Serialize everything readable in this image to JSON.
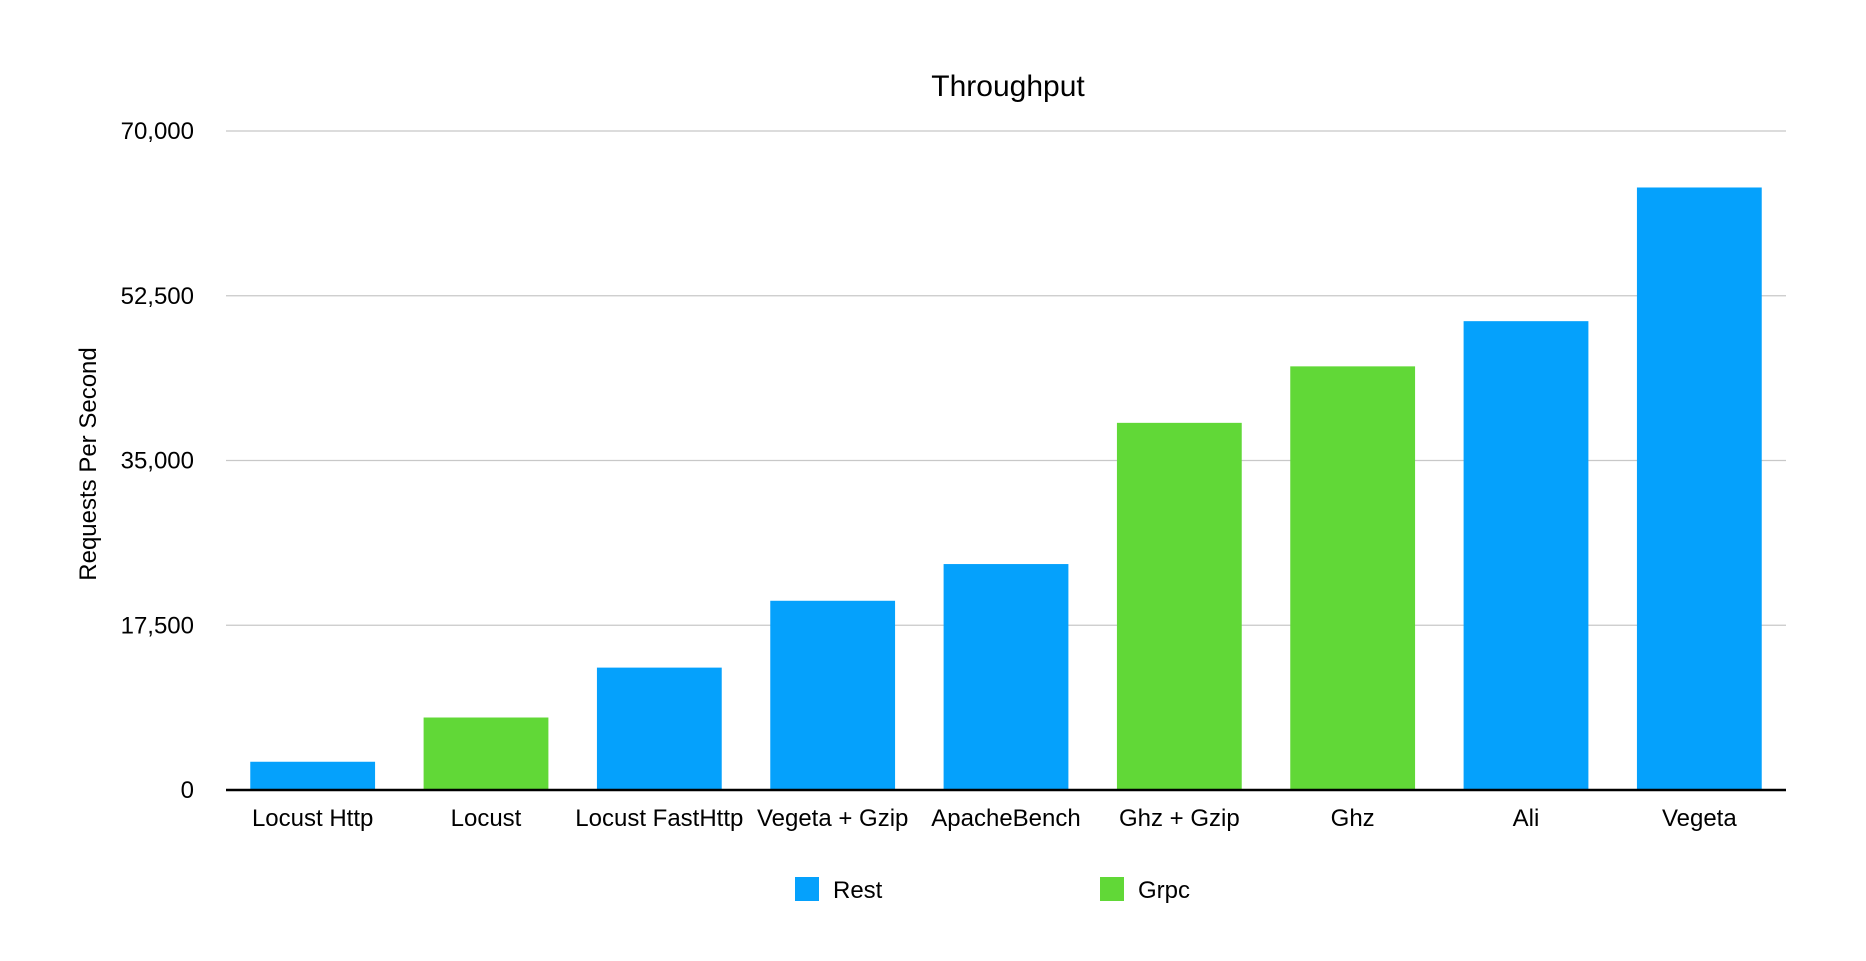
{
  "chart_data": {
    "type": "bar",
    "title": "Throughput",
    "xlabel": "",
    "ylabel": "Requests Per Second",
    "ylim": [
      0,
      70000
    ],
    "yticks": [
      0,
      17500,
      35000,
      52500,
      70000
    ],
    "ytick_labels": [
      "0",
      "17,500",
      "35,000",
      "52,500",
      "70,000"
    ],
    "grid": true,
    "legend_position": "bottom",
    "categories": [
      "Locust Http",
      "Locust",
      "Locust FastHttp",
      "Vegeta + Gzip",
      "ApacheBench",
      "Ghz + Gzip",
      "Ghz",
      "Ali",
      "Vegeta"
    ],
    "values": [
      3000,
      7700,
      13000,
      20100,
      24000,
      39000,
      45000,
      49800,
      64000
    ],
    "bar_series": [
      "Rest",
      "Grpc",
      "Rest",
      "Rest",
      "Rest",
      "Grpc",
      "Grpc",
      "Rest",
      "Rest"
    ],
    "series": [
      {
        "name": "Rest",
        "color": "#05a1fc"
      },
      {
        "name": "Grpc",
        "color": "#61d837"
      }
    ]
  }
}
